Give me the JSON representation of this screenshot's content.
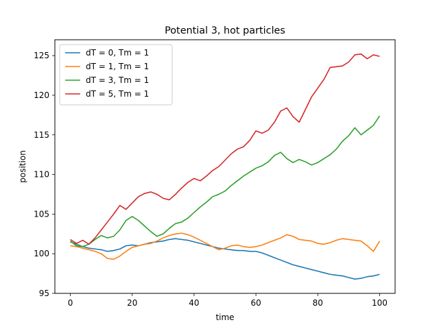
{
  "chart_data": {
    "type": "line",
    "title": "Potential 3, hot particles",
    "xlabel": "time",
    "ylabel": "position",
    "xlim": [
      -5,
      105
    ],
    "ylim": [
      95,
      127
    ],
    "xticks": [
      0,
      20,
      40,
      60,
      80,
      100
    ],
    "yticks": [
      95,
      100,
      105,
      110,
      115,
      120,
      125
    ],
    "legend_position": "top-left",
    "grid": false,
    "series": [
      {
        "name": "dT = 0, Tm = 1",
        "color": "#1f77b4",
        "points": [
          [
            0,
            101.5
          ],
          [
            2,
            101.2
          ],
          [
            4,
            100.9
          ],
          [
            6,
            100.7
          ],
          [
            8,
            100.6
          ],
          [
            10,
            100.5
          ],
          [
            12,
            100.3
          ],
          [
            14,
            100.4
          ],
          [
            16,
            100.6
          ],
          [
            18,
            101.0
          ],
          [
            20,
            101.1
          ],
          [
            22,
            101.0
          ],
          [
            24,
            101.2
          ],
          [
            26,
            101.4
          ],
          [
            28,
            101.5
          ],
          [
            30,
            101.6
          ],
          [
            32,
            101.8
          ],
          [
            34,
            101.9
          ],
          [
            36,
            101.8
          ],
          [
            38,
            101.7
          ],
          [
            40,
            101.5
          ],
          [
            42,
            101.3
          ],
          [
            44,
            101.1
          ],
          [
            46,
            100.9
          ],
          [
            48,
            100.7
          ],
          [
            50,
            100.6
          ],
          [
            52,
            100.5
          ],
          [
            54,
            100.4
          ],
          [
            56,
            100.4
          ],
          [
            58,
            100.3
          ],
          [
            60,
            100.3
          ],
          [
            62,
            100.1
          ],
          [
            64,
            99.8
          ],
          [
            66,
            99.5
          ],
          [
            68,
            99.2
          ],
          [
            70,
            98.9
          ],
          [
            72,
            98.6
          ],
          [
            74,
            98.4
          ],
          [
            76,
            98.2
          ],
          [
            78,
            98.0
          ],
          [
            80,
            97.8
          ],
          [
            82,
            97.6
          ],
          [
            84,
            97.4
          ],
          [
            86,
            97.3
          ],
          [
            88,
            97.2
          ],
          [
            90,
            97.0
          ],
          [
            92,
            96.8
          ],
          [
            94,
            96.9
          ],
          [
            96,
            97.1
          ],
          [
            98,
            97.2
          ],
          [
            100,
            97.4
          ]
        ]
      },
      {
        "name": "dT = 1, Tm = 1",
        "color": "#ff7f0e",
        "points": [
          [
            0,
            101.0
          ],
          [
            2,
            100.9
          ],
          [
            4,
            100.7
          ],
          [
            6,
            100.5
          ],
          [
            8,
            100.3
          ],
          [
            10,
            100.0
          ],
          [
            12,
            99.4
          ],
          [
            14,
            99.3
          ],
          [
            16,
            99.7
          ],
          [
            18,
            100.3
          ],
          [
            20,
            100.8
          ],
          [
            22,
            101.0
          ],
          [
            24,
            101.2
          ],
          [
            26,
            101.3
          ],
          [
            28,
            101.6
          ],
          [
            30,
            102.0
          ],
          [
            32,
            102.3
          ],
          [
            34,
            102.5
          ],
          [
            36,
            102.6
          ],
          [
            38,
            102.4
          ],
          [
            40,
            102.1
          ],
          [
            42,
            101.7
          ],
          [
            44,
            101.3
          ],
          [
            46,
            100.9
          ],
          [
            48,
            100.5
          ],
          [
            50,
            100.7
          ],
          [
            52,
            101.0
          ],
          [
            54,
            101.1
          ],
          [
            56,
            100.9
          ],
          [
            58,
            100.8
          ],
          [
            60,
            100.9
          ],
          [
            62,
            101.1
          ],
          [
            64,
            101.4
          ],
          [
            66,
            101.7
          ],
          [
            68,
            102.0
          ],
          [
            70,
            102.4
          ],
          [
            72,
            102.2
          ],
          [
            74,
            101.8
          ],
          [
            76,
            101.7
          ],
          [
            78,
            101.6
          ],
          [
            80,
            101.3
          ],
          [
            82,
            101.2
          ],
          [
            84,
            101.4
          ],
          [
            86,
            101.7
          ],
          [
            88,
            101.9
          ],
          [
            90,
            101.8
          ],
          [
            92,
            101.7
          ],
          [
            94,
            101.6
          ],
          [
            96,
            101.0
          ],
          [
            98,
            100.3
          ],
          [
            100,
            101.6
          ]
        ]
      },
      {
        "name": "dT = 3, Tm = 1",
        "color": "#2ca02c",
        "points": [
          [
            0,
            101.6
          ],
          [
            2,
            101.0
          ],
          [
            4,
            100.9
          ],
          [
            6,
            101.2
          ],
          [
            8,
            101.8
          ],
          [
            10,
            102.3
          ],
          [
            12,
            102.0
          ],
          [
            14,
            102.2
          ],
          [
            16,
            103.0
          ],
          [
            18,
            104.2
          ],
          [
            20,
            104.7
          ],
          [
            22,
            104.2
          ],
          [
            24,
            103.5
          ],
          [
            26,
            102.8
          ],
          [
            28,
            102.2
          ],
          [
            30,
            102.5
          ],
          [
            32,
            103.2
          ],
          [
            34,
            103.8
          ],
          [
            36,
            104.0
          ],
          [
            38,
            104.5
          ],
          [
            40,
            105.2
          ],
          [
            42,
            105.9
          ],
          [
            44,
            106.5
          ],
          [
            46,
            107.2
          ],
          [
            48,
            107.5
          ],
          [
            50,
            107.9
          ],
          [
            52,
            108.6
          ],
          [
            54,
            109.2
          ],
          [
            56,
            109.8
          ],
          [
            58,
            110.3
          ],
          [
            60,
            110.8
          ],
          [
            62,
            111.1
          ],
          [
            64,
            111.6
          ],
          [
            66,
            112.4
          ],
          [
            68,
            112.8
          ],
          [
            70,
            112.0
          ],
          [
            72,
            111.5
          ],
          [
            74,
            111.9
          ],
          [
            76,
            111.6
          ],
          [
            78,
            111.2
          ],
          [
            80,
            111.5
          ],
          [
            82,
            112.0
          ],
          [
            84,
            112.5
          ],
          [
            86,
            113.2
          ],
          [
            88,
            114.2
          ],
          [
            90,
            114.9
          ],
          [
            92,
            115.9
          ],
          [
            94,
            115.0
          ],
          [
            96,
            115.6
          ],
          [
            98,
            116.2
          ],
          [
            100,
            117.4
          ]
        ]
      },
      {
        "name": "dT = 5, Tm = 1",
        "color": "#d62728",
        "points": [
          [
            0,
            101.8
          ],
          [
            2,
            101.3
          ],
          [
            4,
            101.7
          ],
          [
            6,
            101.2
          ],
          [
            8,
            102.0
          ],
          [
            10,
            103.0
          ],
          [
            12,
            104.0
          ],
          [
            14,
            105.0
          ],
          [
            16,
            106.1
          ],
          [
            18,
            105.6
          ],
          [
            20,
            106.4
          ],
          [
            22,
            107.2
          ],
          [
            24,
            107.6
          ],
          [
            26,
            107.8
          ],
          [
            28,
            107.5
          ],
          [
            30,
            107.0
          ],
          [
            32,
            106.8
          ],
          [
            34,
            107.5
          ],
          [
            36,
            108.3
          ],
          [
            38,
            109.0
          ],
          [
            40,
            109.5
          ],
          [
            42,
            109.2
          ],
          [
            44,
            109.8
          ],
          [
            46,
            110.5
          ],
          [
            48,
            111.0
          ],
          [
            50,
            111.8
          ],
          [
            52,
            112.6
          ],
          [
            54,
            113.2
          ],
          [
            56,
            113.5
          ],
          [
            58,
            114.3
          ],
          [
            60,
            115.5
          ],
          [
            62,
            115.2
          ],
          [
            64,
            115.6
          ],
          [
            66,
            116.6
          ],
          [
            68,
            118.0
          ],
          [
            70,
            118.4
          ],
          [
            72,
            117.3
          ],
          [
            74,
            116.6
          ],
          [
            76,
            118.2
          ],
          [
            78,
            119.8
          ],
          [
            80,
            120.9
          ],
          [
            82,
            122.0
          ],
          [
            84,
            123.5
          ],
          [
            86,
            123.6
          ],
          [
            88,
            123.7
          ],
          [
            90,
            124.2
          ],
          [
            92,
            125.1
          ],
          [
            94,
            125.2
          ],
          [
            96,
            124.6
          ],
          [
            98,
            125.1
          ],
          [
            100,
            124.9
          ]
        ]
      }
    ]
  }
}
